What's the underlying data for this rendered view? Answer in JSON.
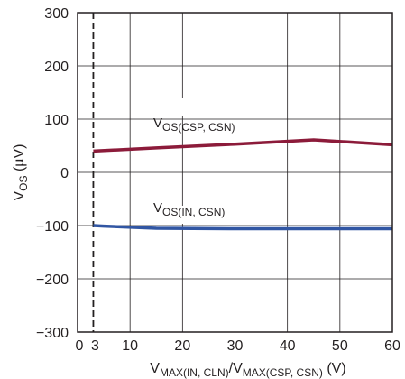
{
  "chart_data": {
    "type": "line",
    "xlim": [
      0,
      60
    ],
    "ylim": [
      -300,
      300
    ],
    "x_ticks": [
      {
        "value": 0,
        "label": "0"
      },
      {
        "value": 3,
        "label": "3"
      },
      {
        "value": 10,
        "label": "10"
      },
      {
        "value": 20,
        "label": "20"
      },
      {
        "value": 30,
        "label": "30"
      },
      {
        "value": 40,
        "label": "40"
      },
      {
        "value": 50,
        "label": "50"
      },
      {
        "value": 60,
        "label": "60"
      }
    ],
    "y_ticks": [
      {
        "value": 300,
        "label": "300"
      },
      {
        "value": 200,
        "label": "200"
      },
      {
        "value": 100,
        "label": "100"
      },
      {
        "value": 0,
        "label": "0"
      },
      {
        "value": -100,
        "label": "−100"
      },
      {
        "value": -200,
        "label": "−200"
      },
      {
        "value": -300,
        "label": "−300"
      }
    ],
    "grid": true,
    "xlabel": {
      "p1": "V",
      "s1": "MAX(IN, CLN)",
      "p2": "/V",
      "s2": "MAX(CSP, CSN)",
      "p3": " (V)"
    },
    "ylabel": {
      "p1": "V",
      "s1": "OS",
      "p2": " (µV)"
    },
    "reference_line": {
      "x": 3,
      "style": "dashed"
    },
    "series": [
      {
        "label_main": "V",
        "label_sub": "OS(CSP, CSN)",
        "color": "#8c1b3a",
        "x": [
          3,
          15,
          30,
          45,
          60
        ],
        "y": [
          40,
          46,
          53,
          61,
          52
        ]
      },
      {
        "label_main": "V",
        "label_sub": "OS(IN, CSN)",
        "color": "#3156a3",
        "x": [
          3,
          5,
          15,
          30,
          45,
          60
        ],
        "y": [
          -100,
          -101,
          -105,
          -106,
          -106,
          -106
        ]
      }
    ]
  }
}
